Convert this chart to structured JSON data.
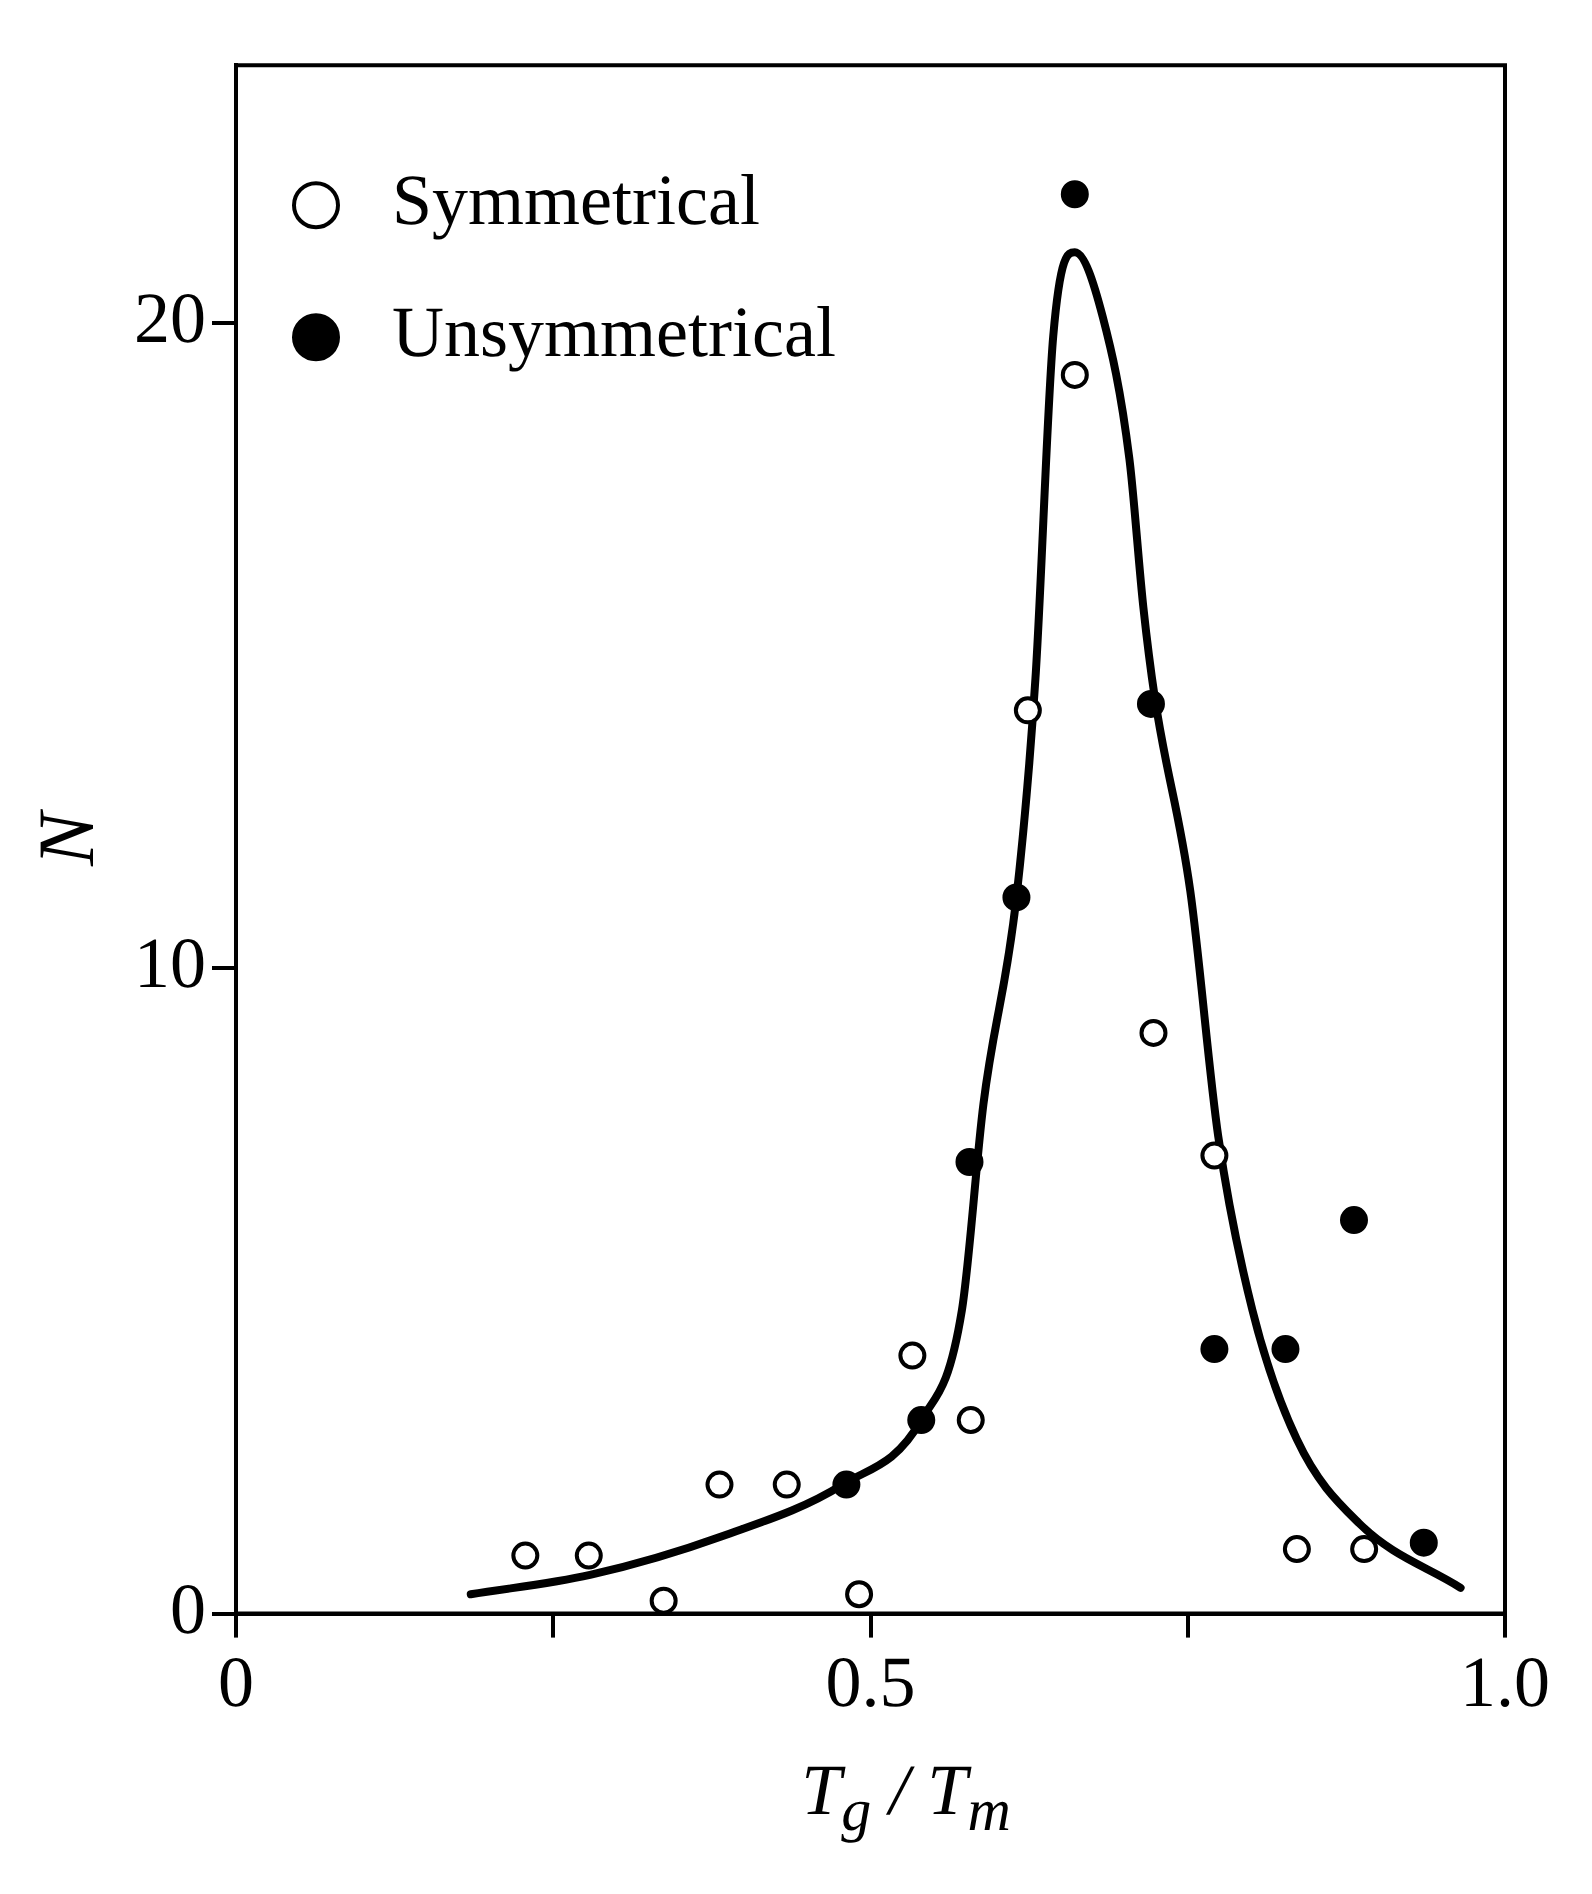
{
  "chart_data": {
    "type": "scatter",
    "xlabel": "T$_{g}$ / T$_{m}$",
    "ylabel": "N",
    "xlim": [
      0,
      1.0
    ],
    "ylim": [
      0,
      24
    ],
    "xticks": [
      0,
      {
        "value": 0.25,
        "label": null
      },
      0.5,
      {
        "value": 0.75,
        "label": null
      },
      {
        "value": 1.0,
        "label": "1.0"
      }
    ],
    "yticks": [
      0,
      10,
      20
    ],
    "grid": false,
    "legend": "top left",
    "marker": "circle",
    "series": [
      {
        "name": "Symmetrical",
        "color": "#ffffff",
        "x": [
          0.228,
          0.278,
          0.337,
          0.381,
          0.434,
          0.491,
          0.533,
          0.579,
          0.624,
          0.661,
          0.723,
          0.771,
          0.836,
          0.889
        ],
        "values": [
          0.9,
          0.9,
          0.2,
          2.0,
          2.0,
          0.3,
          4.0,
          3.0,
          14.0,
          19.2,
          9.0,
          7.1,
          1.0,
          1.0
        ]
      },
      {
        "name": "Unsymmetrical",
        "color": "#000000",
        "x": [
          0.481,
          0.54,
          0.578,
          0.615,
          0.661,
          0.721,
          0.771,
          0.827,
          0.881,
          0.936
        ],
        "values": [
          2.0,
          3.0,
          7.0,
          11.1,
          22.0,
          14.1,
          4.1,
          4.1,
          6.1,
          1.1
        ]
      },
      {
        "type": "line",
        "color": "#000000",
        "marker": "none",
        "line_style": "solid",
        "x": [
          0.185,
          0.279,
          0.383,
          0.478,
          0.54,
          0.572,
          0.589,
          0.615,
          0.63,
          0.644,
          0.661,
          0.683,
          0.704,
          0.715,
          0.724,
          0.752,
          0.774,
          0.801,
          0.836,
          0.885,
          0.965
        ],
        "values": [
          0.3,
          0.6,
          1.2,
          2.0,
          3.0,
          4.7,
          7.9,
          11.1,
          14.5,
          19.8,
          21.1,
          20.1,
          17.9,
          15.6,
          14.2,
          11.2,
          7.4,
          4.7,
          2.7,
          1.4,
          0.4
        ]
      }
    ]
  }
}
